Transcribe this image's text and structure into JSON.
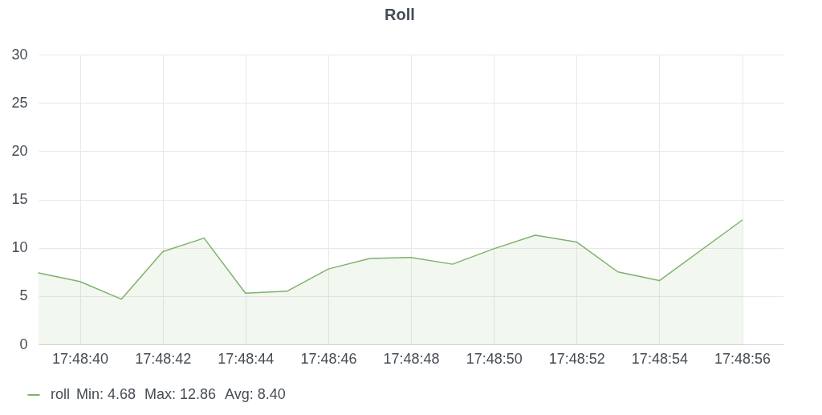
{
  "chart_data": {
    "type": "area",
    "title": "Roll",
    "x": [
      17.810833,
      17.811111,
      17.811389,
      17.811667,
      17.811944,
      17.812222,
      17.8125,
      17.812778,
      17.813056,
      17.813333,
      17.813611,
      17.813889,
      17.814167,
      17.814444,
      17.814722,
      17.815,
      17.815556
    ],
    "series": [
      {
        "name": "roll",
        "color": "#7eb26d",
        "values": [
          7.4,
          6.5,
          4.68,
          9.6,
          11.0,
          5.3,
          5.5,
          7.8,
          8.9,
          9.0,
          8.3,
          9.9,
          11.3,
          10.6,
          7.5,
          6.6,
          12.86
        ]
      }
    ],
    "xlim": [
      17.810833,
      17.815833
    ],
    "xticks": [
      {
        "value": 17.811111,
        "label": "17:48:40"
      },
      {
        "value": 17.811667,
        "label": "17:48:42"
      },
      {
        "value": 17.812222,
        "label": "17:48:44"
      },
      {
        "value": 17.812778,
        "label": "17:48:46"
      },
      {
        "value": 17.813333,
        "label": "17:48:48"
      },
      {
        "value": 17.813889,
        "label": "17:48:50"
      },
      {
        "value": 17.814444,
        "label": "17:48:52"
      },
      {
        "value": 17.815,
        "label": "17:48:54"
      },
      {
        "value": 17.815556,
        "label": "17:48:56"
      }
    ],
    "ylim": [
      0,
      30
    ],
    "yticks": [
      0,
      5,
      10,
      15,
      20,
      25,
      30
    ],
    "grid": true,
    "legend": "bottom left",
    "annotations": [
      "Min: 4.68",
      "Max: 12.86",
      "Avg: 8.40"
    ]
  }
}
